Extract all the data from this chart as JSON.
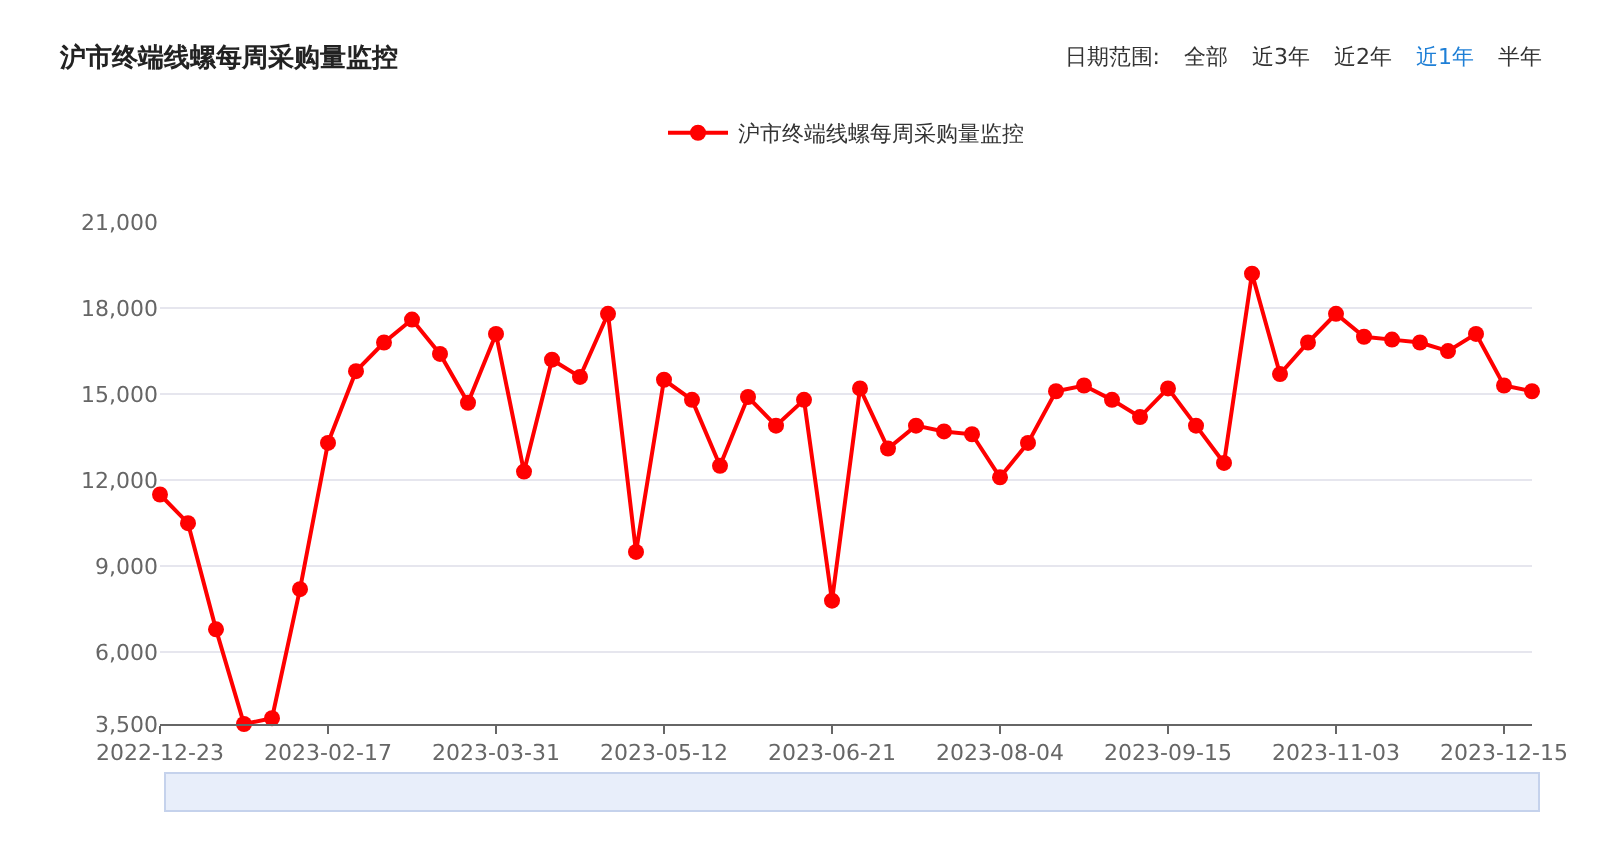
{
  "chart_data": {
    "type": "line",
    "title": "沪市终端线螺每周采购量监控",
    "annotations": [
      "日期范围:",
      "全部",
      "近3年",
      "近2年",
      "近1年",
      "半年"
    ],
    "categories": [
      "2022-12-23",
      null,
      null,
      null,
      null,
      null,
      "2023-02-17",
      null,
      null,
      null,
      null,
      null,
      "2023-03-31",
      null,
      null,
      null,
      null,
      null,
      "2023-05-12",
      null,
      null,
      null,
      null,
      null,
      "2023-06-21",
      null,
      null,
      null,
      null,
      null,
      "2023-08-04",
      null,
      null,
      null,
      null,
      null,
      "2023-09-15",
      null,
      null,
      null,
      null,
      null,
      "2023-11-03",
      null,
      null,
      null,
      null,
      null,
      "2023-12-15",
      null
    ],
    "series": [
      {
        "name": "沪市终端线螺每周采购量监控",
        "color": "#ff0000",
        "values": [
          11500,
          10500,
          6800,
          3500,
          3700,
          8200,
          13300,
          15800,
          16800,
          17600,
          16400,
          14700,
          17100,
          12300,
          16200,
          15600,
          17800,
          9500,
          15500,
          14800,
          12500,
          14900,
          13900,
          14800,
          7800,
          15200,
          13100,
          13900,
          13700,
          13600,
          12100,
          13300,
          15100,
          15300,
          14800,
          14200,
          15200,
          13900,
          12600,
          19200,
          15700,
          16800,
          17800,
          17000,
          16900,
          16800,
          16500,
          17100,
          15300,
          15100
        ]
      }
    ],
    "ylim": [
      3500,
      21000
    ],
    "yticks": [
      {
        "value": 3500,
        "label": "3,500"
      },
      {
        "value": 6000,
        "label": "6,000"
      },
      {
        "value": 9000,
        "label": "9,000"
      },
      {
        "value": 12000,
        "label": "12,000"
      },
      {
        "value": 15000,
        "label": "15,000"
      },
      {
        "value": 18000,
        "label": "18,000"
      },
      {
        "value": 21000,
        "label": "21,000"
      }
    ],
    "grid": "y",
    "legend": "top",
    "marker": "circle",
    "line_style": "solid"
  }
}
